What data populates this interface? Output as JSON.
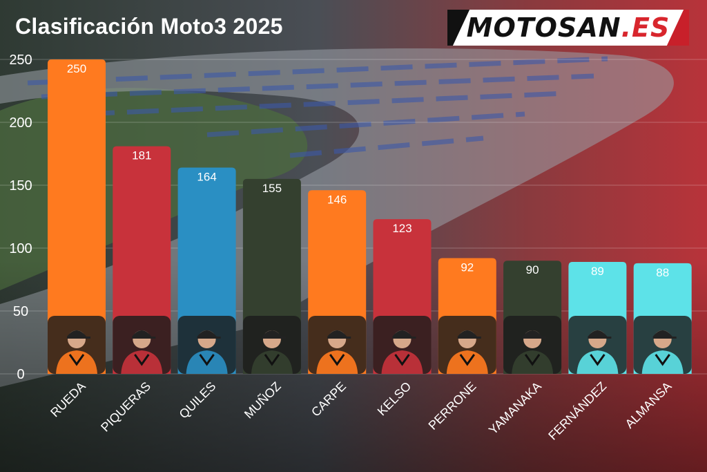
{
  "title": "Clasificación Moto3 2025",
  "logo": {
    "main": "MOTOSAN",
    "accent": ".ES"
  },
  "colors": {
    "orange": "#FF7A1F",
    "red": "#C8323B",
    "blue": "#2A8FC3",
    "darkgreen": "#34402F",
    "cyan": "#5DE2E8",
    "text": "#FFFFFF"
  },
  "chart_data": {
    "type": "bar",
    "title": "Clasificación Moto3 2025",
    "xlabel": "",
    "ylabel": "",
    "ylim": [
      0,
      250
    ],
    "yticks": [
      0,
      50,
      100,
      150,
      200,
      250
    ],
    "grid": true,
    "categories": [
      "RUEDA",
      "PIQUERAS",
      "QUILES",
      "MUÑOZ",
      "CARPE",
      "KELSO",
      "PERRONE",
      "YAMANAKA",
      "FERNÁNDEZ",
      "ALMANSA"
    ],
    "values": [
      250,
      181,
      164,
      155,
      146,
      123,
      92,
      90,
      89,
      88
    ],
    "bar_colors": [
      "#FF7A1F",
      "#C8323B",
      "#2A8FC3",
      "#34402F",
      "#FF7A1F",
      "#C8323B",
      "#FF7A1F",
      "#34402F",
      "#5DE2E8",
      "#5DE2E8"
    ],
    "data_labels": [
      "250",
      "181",
      "164",
      "155",
      "146",
      "123",
      "92",
      "90",
      "89",
      "88"
    ]
  }
}
